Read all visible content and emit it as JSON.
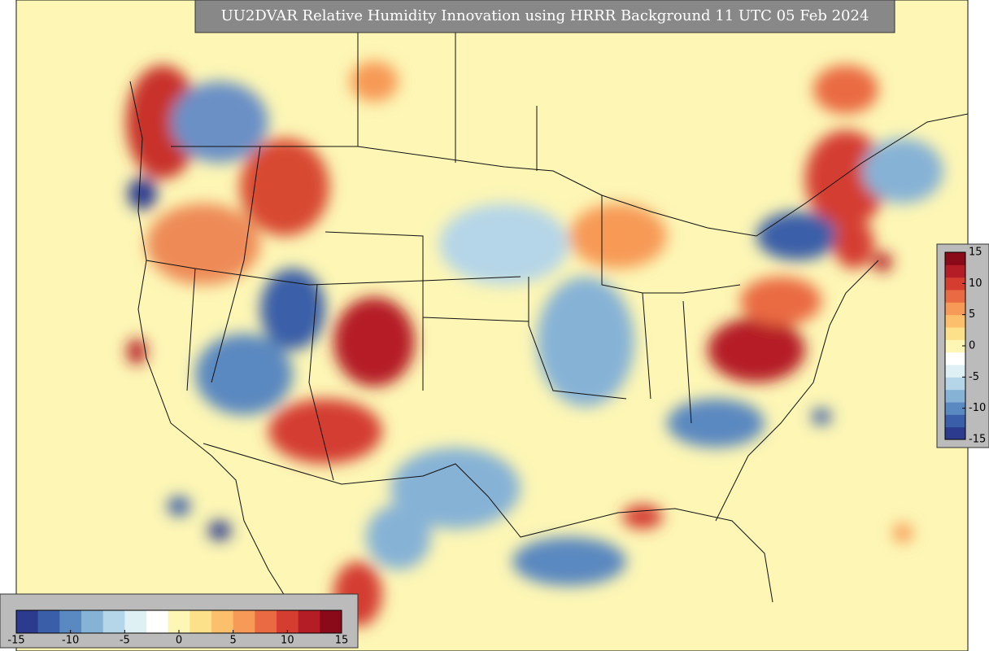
{
  "title": "UU2DVAR Relative Humidity Innovation using HRRR Background 11 UTC 05 Feb 2024",
  "colorbars": {
    "horizontal": {
      "lim": [
        -15,
        15
      ],
      "ticks": [
        -15,
        -10,
        -5,
        0,
        5,
        10,
        15
      ]
    },
    "vertical": {
      "lim": [
        -15,
        15
      ],
      "ticks": [
        15,
        10,
        5,
        0,
        -5,
        -10,
        -15
      ]
    }
  },
  "colormap": [
    "#2c3b8e",
    "#3a5fa8",
    "#5a88c0",
    "#86b2d6",
    "#b5d6e8",
    "#dff0f4",
    "#ffffff",
    "#fdf6b5",
    "#fde08a",
    "#fcbf6c",
    "#f79a57",
    "#ea6b43",
    "#d43d30",
    "#b51d26",
    "#8b0a1a"
  ]
}
